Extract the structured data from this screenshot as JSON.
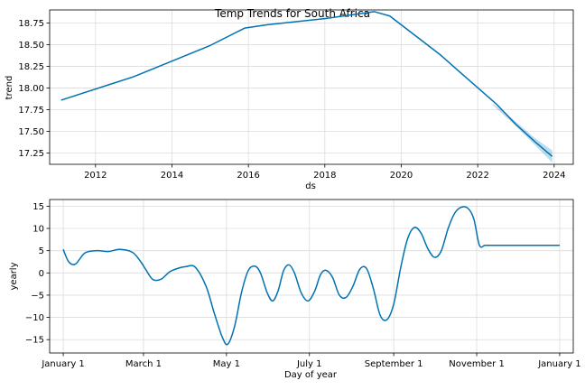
{
  "chart_data": [
    {
      "type": "line",
      "title": "Temp Trends for South Africa",
      "xlabel": "ds",
      "ylabel": "trend",
      "xlim": [
        2010.8,
        2024.5
      ],
      "ylim": [
        17.12,
        18.9
      ],
      "x_ticks": [
        2012,
        2014,
        2016,
        2018,
        2020,
        2022,
        2024
      ],
      "x_tick_labels": [
        "2012",
        "2014",
        "2016",
        "2018",
        "2020",
        "2022",
        "2024"
      ],
      "y_ticks": [
        17.25,
        17.5,
        17.75,
        18.0,
        18.25,
        18.5,
        18.75
      ],
      "y_tick_labels": [
        "17.25",
        "17.50",
        "17.75",
        "18.00",
        "18.25",
        "18.50",
        "18.75"
      ],
      "grid": true,
      "line_color": "#0072B2",
      "band_color": "#0072B2",
      "series": [
        {
          "x": [
            2011.1,
            2013.0,
            2015.0,
            2015.9,
            2016.5,
            2018.0,
            2019.3,
            2019.7,
            2021.0,
            2022.5,
            2023.0,
            2023.5,
            2023.95
          ],
          "y": [
            17.86,
            18.13,
            18.49,
            18.69,
            18.73,
            18.8,
            18.88,
            18.83,
            18.39,
            17.81,
            17.58,
            17.38,
            17.21
          ]
        }
      ],
      "uncertainty_band": {
        "x": [
          2022.4,
          2023.0,
          2023.5,
          2023.95
        ],
        "lower": [
          17.8,
          17.56,
          17.34,
          17.14
        ],
        "upper": [
          17.82,
          17.61,
          17.42,
          17.28
        ]
      }
    },
    {
      "type": "line",
      "xlabel": "Day of year",
      "ylabel": "yearly",
      "xlim": [
        -10,
        375
      ],
      "ylim": [
        -18,
        16.5
      ],
      "x_ticks": [
        0,
        59,
        120,
        181,
        243,
        304,
        365
      ],
      "x_tick_labels": [
        "January 1",
        "March 1",
        "May 1",
        "July 1",
        "September 1",
        "November 1",
        "January 1"
      ],
      "y_ticks": [
        -15,
        -10,
        -5,
        0,
        5,
        10,
        15
      ],
      "y_tick_labels": [
        "−15",
        "−10",
        "−5",
        "0",
        "5",
        "10",
        "15"
      ],
      "grid": true,
      "line_color": "#0072B2",
      "series": [
        {
          "x": [
            0,
            4,
            9,
            16,
            25,
            33,
            42,
            51,
            57,
            61,
            66,
            72,
            78,
            84,
            90,
            97,
            105,
            111,
            117,
            121,
            126,
            131,
            136,
            141,
            145,
            150,
            154,
            158,
            162,
            166,
            170,
            175,
            180,
            185,
            189,
            193,
            198,
            203,
            208,
            213,
            218,
            223,
            228,
            233,
            238,
            243,
            248,
            253,
            258,
            263,
            268,
            273,
            278,
            283,
            288,
            293,
            298,
            302,
            306,
            310,
            314,
            318,
            322,
            326,
            330,
            334,
            338,
            343,
            348,
            352,
            356,
            360,
            365
          ],
          "y": [
            5.3,
            2.5,
            2.0,
            4.5,
            5.0,
            4.8,
            5.3,
            4.6,
            2.5,
            0.6,
            -1.5,
            -1.4,
            0.2,
            1.0,
            1.4,
            1.3,
            -3.0,
            -9.0,
            -14.5,
            -16.0,
            -12.0,
            -4.5,
            0.5,
            1.5,
            0.0,
            -4.5,
            -6.3,
            -4.0,
            0.5,
            1.8,
            0.0,
            -4.5,
            -6.3,
            -4.0,
            -0.5,
            0.6,
            -1.0,
            -5.0,
            -5.5,
            -3.0,
            0.8,
            1.0,
            -3.5,
            -9.5,
            -10.5,
            -7.0,
            1.0,
            7.5,
            10.2,
            9.0,
            5.5,
            3.5,
            5.0,
            10.0,
            13.5,
            14.8,
            14.4,
            12.0,
            6.2,
            6.2,
            6.2,
            6.2,
            6.2,
            6.2,
            6.2,
            6.2,
            6.2,
            6.2,
            6.2,
            6.2,
            6.2,
            6.2,
            6.2
          ]
        }
      ]
    }
  ]
}
